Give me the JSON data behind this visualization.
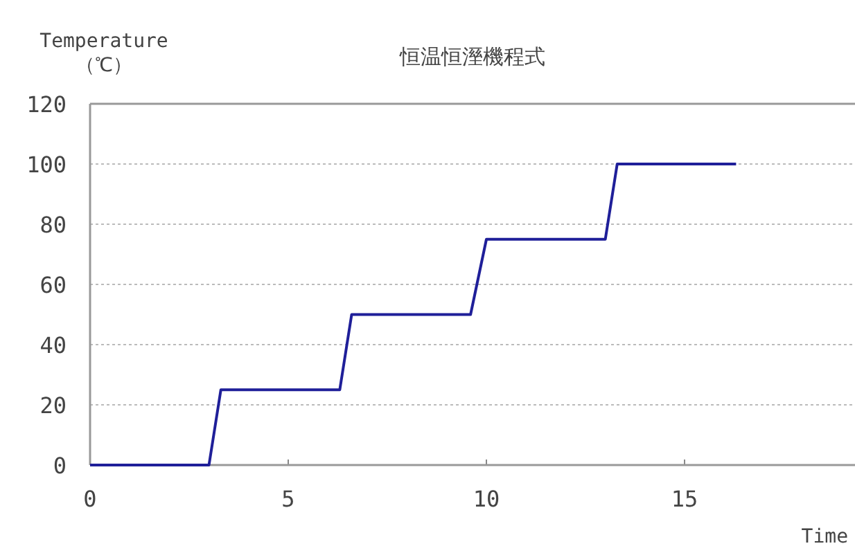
{
  "chart_data": {
    "type": "line",
    "title": "恒温恒溼機程式",
    "xlabel": "Time",
    "ylabel": "Temperature\n（℃）",
    "x": [
      0,
      3.0,
      3.3,
      6.3,
      6.6,
      9.6,
      10.0,
      13.0,
      13.3,
      16.3
    ],
    "series": [
      {
        "color": "#1f1f99",
        "values": [
          0,
          0,
          25,
          25,
          50,
          50,
          75,
          75,
          100,
          100
        ]
      }
    ],
    "xlim": [
      0,
      19.3
    ],
    "xticks": [
      0,
      5,
      10,
      15
    ],
    "ylim": [
      0,
      120
    ],
    "yticks": [
      0,
      20,
      40,
      60,
      80,
      100,
      120
    ],
    "grid": "y",
    "marker": "none",
    "line_style": "solid"
  }
}
